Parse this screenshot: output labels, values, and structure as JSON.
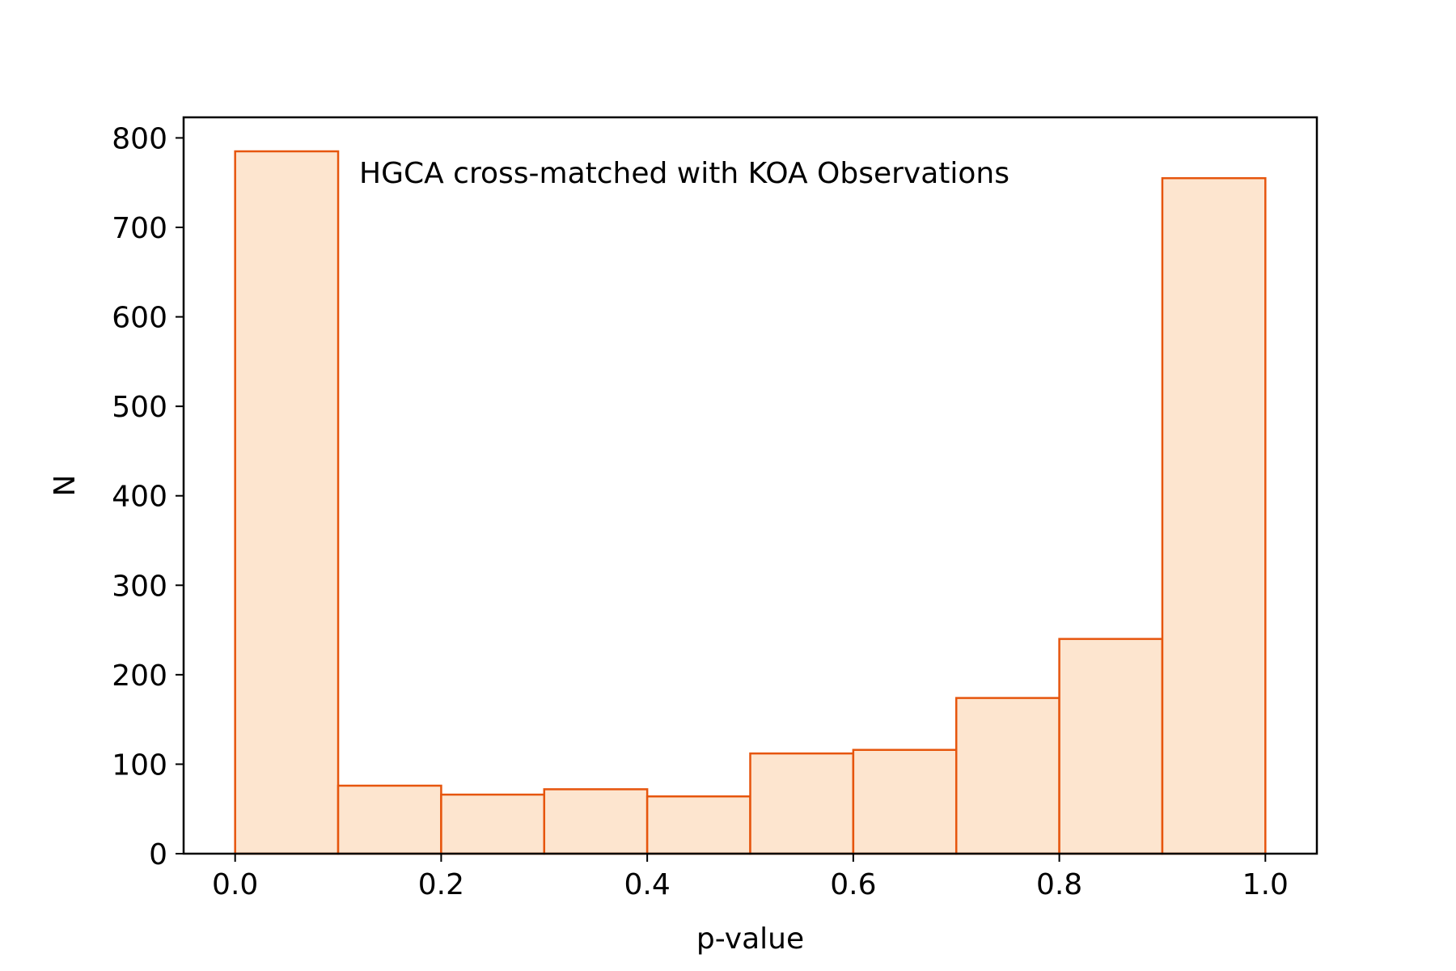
{
  "chart_data": {
    "type": "bar",
    "title": "",
    "annotation": "HGCA cross-matched with KOA Observations",
    "xlabel": "p-value",
    "ylabel": "N",
    "bin_edges": [
      0.0,
      0.1,
      0.2,
      0.3,
      0.4,
      0.5,
      0.6,
      0.7,
      0.8,
      0.9,
      1.0
    ],
    "values": [
      785,
      76,
      66,
      72,
      64,
      112,
      116,
      174,
      240,
      755
    ],
    "xlim": [
      -0.05,
      1.05
    ],
    "ylim": [
      0,
      823
    ],
    "xticks": [
      0.0,
      0.2,
      0.4,
      0.6,
      0.8,
      1.0
    ],
    "xtick_labels": [
      "0.0",
      "0.2",
      "0.4",
      "0.6",
      "0.8",
      "1.0"
    ],
    "yticks": [
      0,
      100,
      200,
      300,
      400,
      500,
      600,
      700,
      800
    ],
    "ytick_labels": [
      "0",
      "100",
      "200",
      "300",
      "400",
      "500",
      "600",
      "700",
      "800"
    ],
    "grid": false,
    "legend": "none",
    "colors": {
      "bar_fill": "#fde5cf",
      "bar_edge": "#e6550d",
      "axes": "#000000"
    }
  }
}
